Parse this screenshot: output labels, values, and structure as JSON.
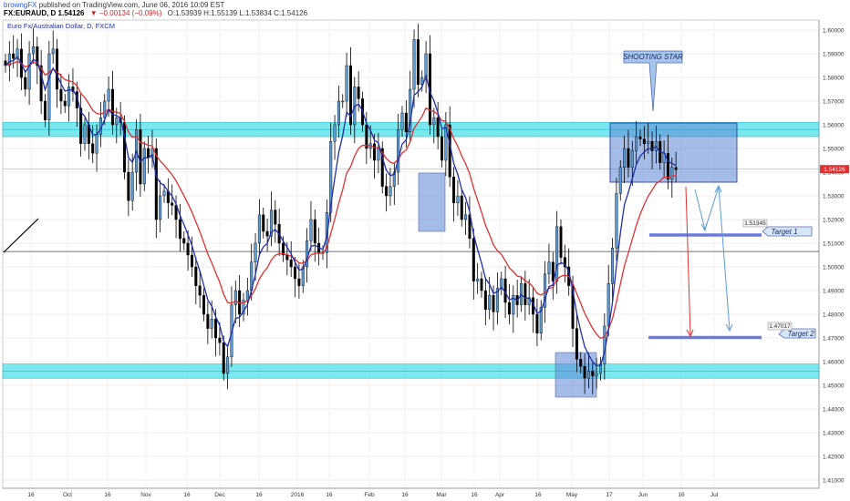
{
  "header": {
    "author": "browngFX",
    "published_text": " published on TradingView.com, June 06, 2016 10:09 EST",
    "symbol_line": "FX:EURAUD, D  1.54126",
    "change": "▼ −0.00134 (−0.09%)",
    "ohlc": "O:1.53939  H:1.55139  L:1.53834  C:1.54126",
    "legend": "Euro Fx/Australian Dollar, D, FXCM"
  },
  "colors": {
    "up": "#5b9bd5",
    "down": "#000000",
    "ema_fast": "#1f2fa8",
    "ema_slow": "#e03030",
    "zone": "#4fe0ea",
    "box": "#5b85d6",
    "target_line": "#6a7be0",
    "last_price": "#e03030",
    "arrow_red": "#e03030",
    "arrow_blue": "#5b9bd5"
  },
  "price_label": "1.54126",
  "annotations": {
    "shooting_star": "SHOOTING STAR",
    "target1": "Target 1",
    "target2": "Target 2",
    "target1_price": "1.51345",
    "target2_price": "1.47017"
  },
  "chart_data": {
    "type": "candlestick",
    "y_ticks": [
      "1.60000",
      "1.59000",
      "1.58000",
      "1.57000",
      "1.56000",
      "1.55000",
      "1.54000",
      "1.53000",
      "1.52000",
      "1.51000",
      "1.50000",
      "1.49000",
      "1.48000",
      "1.47000",
      "1.46000",
      "1.45000",
      "1.44000",
      "1.43000",
      "1.42000",
      "1.41000"
    ],
    "ylim": [
      1.405,
      1.605
    ],
    "x_ticks": [
      "16",
      "Oct",
      "16",
      "Nov",
      "16",
      "Dec",
      "16",
      "2016",
      "16",
      "Feb",
      "16",
      "Mar",
      "16",
      "Apr",
      "16",
      "May",
      "17",
      "Jun",
      "16",
      "Jul"
    ],
    "levels": {
      "resistance_zone": [
        1.555,
        1.561
      ],
      "support_zone": [
        1.453,
        1.459
      ],
      "horizontal_line": 1.5065,
      "last_price": 1.54126,
      "target1": 1.51345,
      "target2": 1.47017
    },
    "closes": [
      1.585,
      1.59,
      1.588,
      1.592,
      1.58,
      1.575,
      1.59,
      1.593,
      1.585,
      1.57,
      1.562,
      1.59,
      1.592,
      1.575,
      1.57,
      1.568,
      1.576,
      1.574,
      1.567,
      1.552,
      1.56,
      1.552,
      1.548,
      1.556,
      1.563,
      1.57,
      1.575,
      1.56,
      1.563,
      1.561,
      1.54,
      1.528,
      1.54,
      1.558,
      1.535,
      1.55,
      1.546,
      1.55,
      1.52,
      1.53,
      1.532,
      1.527,
      1.526,
      1.52,
      1.512,
      1.51,
      1.505,
      1.5,
      1.492,
      1.488,
      1.48,
      1.474,
      1.478,
      1.47,
      1.468,
      1.455,
      1.462,
      1.484,
      1.49,
      1.48,
      1.486,
      1.49,
      1.502,
      1.51,
      1.522,
      1.515,
      1.513,
      1.524,
      1.518,
      1.51,
      1.505,
      1.503,
      1.5,
      1.495,
      1.492,
      1.5,
      1.511,
      1.52,
      1.51,
      1.506,
      1.506,
      1.523,
      1.553,
      1.56,
      1.57,
      1.57,
      1.585,
      1.56,
      1.576,
      1.571,
      1.56,
      1.55,
      1.552,
      1.545,
      1.55,
      1.534,
      1.53,
      1.534,
      1.54,
      1.558,
      1.565,
      1.557,
      1.575,
      1.596,
      1.577,
      1.58,
      1.59,
      1.56,
      1.563,
      1.555,
      1.545,
      1.56,
      1.538,
      1.527,
      1.53,
      1.52,
      1.522,
      1.512,
      1.494,
      1.495,
      1.49,
      1.482,
      1.488,
      1.481,
      1.491,
      1.495,
      1.485,
      1.48,
      1.488,
      1.484,
      1.493,
      1.484,
      1.487,
      1.48,
      1.472,
      1.483,
      1.497,
      1.502,
      1.494,
      1.517,
      1.504,
      1.5,
      1.492,
      1.474,
      1.461,
      1.458,
      1.453,
      1.456,
      1.454,
      1.455,
      1.459,
      1.475,
      1.493,
      1.508,
      1.531,
      1.542,
      1.55,
      1.542,
      1.549,
      1.555,
      1.554,
      1.552,
      1.553,
      1.549,
      1.553,
      1.544,
      1.548,
      1.537,
      1.542,
      1.541
    ]
  }
}
